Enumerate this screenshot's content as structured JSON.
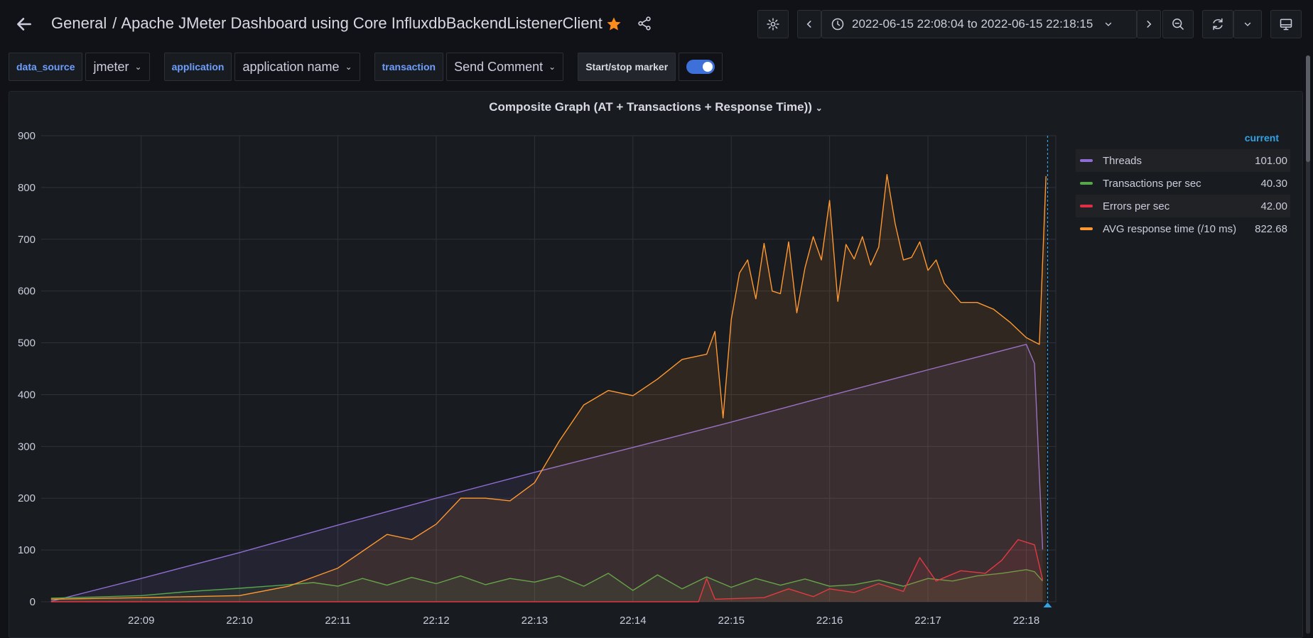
{
  "header": {
    "breadcrumb_folder": "General",
    "breadcrumb_separator": "/",
    "dashboard_title": "Apache JMeter Dashboard using Core InfluxdbBackendListenerClient",
    "time_range": "2022-06-15 22:08:04 to 2022-06-15 22:18:15"
  },
  "icons": {
    "back": "arrow-left-icon",
    "star": "star-icon",
    "share": "share-icon",
    "settings": "gear-icon",
    "prev": "chevron-left-icon",
    "clock": "clock-icon",
    "next": "chevron-right-icon",
    "zoom_out": "zoom-out-icon",
    "refresh": "refresh-icon",
    "refresh_dropdown": "chevron-down-icon",
    "tv_mode": "monitor-icon"
  },
  "variables": [
    {
      "label": "data_source",
      "value": "jmeter"
    },
    {
      "label": "application",
      "value": "application name"
    },
    {
      "label": "transaction",
      "value": "Send Comment"
    }
  ],
  "marker": {
    "label": "Start/stop marker",
    "enabled": true
  },
  "panel": {
    "title": "Composite Graph (AT + Transactions + Response Time))",
    "legend_header": "current",
    "legend": [
      {
        "name": "Threads",
        "value": "101.00",
        "color": "#8f6dd4"
      },
      {
        "name": "Transactions per sec",
        "value": "40.30",
        "color": "#56a64b"
      },
      {
        "name": "Errors per sec",
        "value": "42.00",
        "color": "#e02f44"
      },
      {
        "name": "AVG response time (/10 ms)",
        "value": "822.68",
        "color": "#ff9830"
      }
    ]
  },
  "chart_data": {
    "type": "area",
    "title": "Composite Graph (AT + Transactions + Response Time))",
    "ylim": [
      0,
      900
    ],
    "yticks": [
      "0",
      "100",
      "200",
      "300",
      "400",
      "500",
      "600",
      "700",
      "800",
      "900"
    ],
    "xlim": [
      "22:08:04",
      "22:18:15"
    ],
    "xticks": [
      "22:09",
      "22:10",
      "22:11",
      "22:12",
      "22:13",
      "22:14",
      "22:15",
      "22:16",
      "22:17",
      "22:18"
    ],
    "grid": true,
    "legend_position": "right",
    "series": [
      {
        "name": "Threads",
        "color": "#8f6dd4",
        "points": [
          [
            "22:08:05",
            1
          ],
          [
            "22:09:00",
            45
          ],
          [
            "22:10:00",
            95
          ],
          [
            "22:11:00",
            148
          ],
          [
            "22:12:00",
            200
          ],
          [
            "22:13:00",
            250
          ],
          [
            "22:14:00",
            298
          ],
          [
            "22:15:00",
            347
          ],
          [
            "22:16:00",
            398
          ],
          [
            "22:17:00",
            448
          ],
          [
            "22:18:00",
            497
          ],
          [
            "22:18:05",
            460
          ],
          [
            "22:18:10",
            101
          ]
        ]
      },
      {
        "name": "Transactions per sec",
        "color": "#56a64b",
        "points": [
          [
            "22:08:05",
            7
          ],
          [
            "22:08:30",
            9
          ],
          [
            "22:09:00",
            12
          ],
          [
            "22:09:30",
            20
          ],
          [
            "22:10:00",
            26
          ],
          [
            "22:10:30",
            33
          ],
          [
            "22:10:45",
            37
          ],
          [
            "22:11:00",
            30
          ],
          [
            "22:11:15",
            45
          ],
          [
            "22:11:30",
            32
          ],
          [
            "22:11:45",
            47
          ],
          [
            "22:12:00",
            35
          ],
          [
            "22:12:15",
            50
          ],
          [
            "22:12:30",
            33
          ],
          [
            "22:12:45",
            45
          ],
          [
            "22:13:00",
            38
          ],
          [
            "22:13:15",
            50
          ],
          [
            "22:13:30",
            30
          ],
          [
            "22:13:45",
            55
          ],
          [
            "22:14:00",
            22
          ],
          [
            "22:14:15",
            52
          ],
          [
            "22:14:30",
            25
          ],
          [
            "22:14:45",
            48
          ],
          [
            "22:15:00",
            28
          ],
          [
            "22:15:15",
            45
          ],
          [
            "22:15:30",
            32
          ],
          [
            "22:15:45",
            44
          ],
          [
            "22:16:00",
            30
          ],
          [
            "22:16:15",
            33
          ],
          [
            "22:16:30",
            42
          ],
          [
            "22:16:45",
            30
          ],
          [
            "22:17:00",
            45
          ],
          [
            "22:17:15",
            40
          ],
          [
            "22:17:30",
            50
          ],
          [
            "22:17:45",
            55
          ],
          [
            "22:18:00",
            62
          ],
          [
            "22:18:05",
            58
          ],
          [
            "22:18:10",
            40
          ]
        ]
      },
      {
        "name": "Errors per sec",
        "color": "#e02f44",
        "points": [
          [
            "22:08:05",
            0
          ],
          [
            "22:14:40",
            0
          ],
          [
            "22:14:45",
            45
          ],
          [
            "22:14:50",
            5
          ],
          [
            "22:15:20",
            8
          ],
          [
            "22:15:35",
            25
          ],
          [
            "22:15:50",
            10
          ],
          [
            "22:16:00",
            25
          ],
          [
            "22:16:15",
            18
          ],
          [
            "22:16:30",
            35
          ],
          [
            "22:16:45",
            20
          ],
          [
            "22:16:55",
            85
          ],
          [
            "22:17:05",
            40
          ],
          [
            "22:17:20",
            60
          ],
          [
            "22:17:35",
            55
          ],
          [
            "22:17:45",
            80
          ],
          [
            "22:17:55",
            120
          ],
          [
            "22:18:00",
            115
          ],
          [
            "22:18:05",
            110
          ],
          [
            "22:18:10",
            42
          ]
        ]
      },
      {
        "name": "AVG response time (/10 ms)",
        "color": "#ff9830",
        "points": [
          [
            "22:08:05",
            5
          ],
          [
            "22:09:00",
            8
          ],
          [
            "22:10:00",
            12
          ],
          [
            "22:10:30",
            30
          ],
          [
            "22:11:00",
            65
          ],
          [
            "22:11:30",
            130
          ],
          [
            "22:11:45",
            120
          ],
          [
            "22:12:00",
            150
          ],
          [
            "22:12:15",
            200
          ],
          [
            "22:12:30",
            200
          ],
          [
            "22:12:45",
            195
          ],
          [
            "22:13:00",
            230
          ],
          [
            "22:13:15",
            310
          ],
          [
            "22:13:30",
            380
          ],
          [
            "22:13:45",
            408
          ],
          [
            "22:14:00",
            398
          ],
          [
            "22:14:15",
            430
          ],
          [
            "22:14:30",
            468
          ],
          [
            "22:14:45",
            478
          ],
          [
            "22:14:50",
            522
          ],
          [
            "22:14:55",
            355
          ],
          [
            "22:15:00",
            545
          ],
          [
            "22:15:05",
            635
          ],
          [
            "22:15:10",
            660
          ],
          [
            "22:15:15",
            585
          ],
          [
            "22:15:20",
            692
          ],
          [
            "22:15:25",
            600
          ],
          [
            "22:15:30",
            595
          ],
          [
            "22:15:35",
            695
          ],
          [
            "22:15:40",
            558
          ],
          [
            "22:15:45",
            645
          ],
          [
            "22:15:50",
            705
          ],
          [
            "22:15:55",
            660
          ],
          [
            "22:16:00",
            775
          ],
          [
            "22:16:05",
            580
          ],
          [
            "22:16:10",
            690
          ],
          [
            "22:16:15",
            662
          ],
          [
            "22:16:20",
            705
          ],
          [
            "22:16:25",
            650
          ],
          [
            "22:16:30",
            685
          ],
          [
            "22:16:35",
            825
          ],
          [
            "22:16:40",
            730
          ],
          [
            "22:16:45",
            660
          ],
          [
            "22:16:50",
            665
          ],
          [
            "22:16:55",
            695
          ],
          [
            "22:17:00",
            640
          ],
          [
            "22:17:05",
            660
          ],
          [
            "22:17:10",
            615
          ],
          [
            "22:17:20",
            578
          ],
          [
            "22:17:30",
            578
          ],
          [
            "22:17:40",
            565
          ],
          [
            "22:17:50",
            540
          ],
          [
            "22:18:00",
            510
          ],
          [
            "22:18:08",
            497
          ],
          [
            "22:18:12",
            822
          ]
        ]
      }
    ]
  }
}
